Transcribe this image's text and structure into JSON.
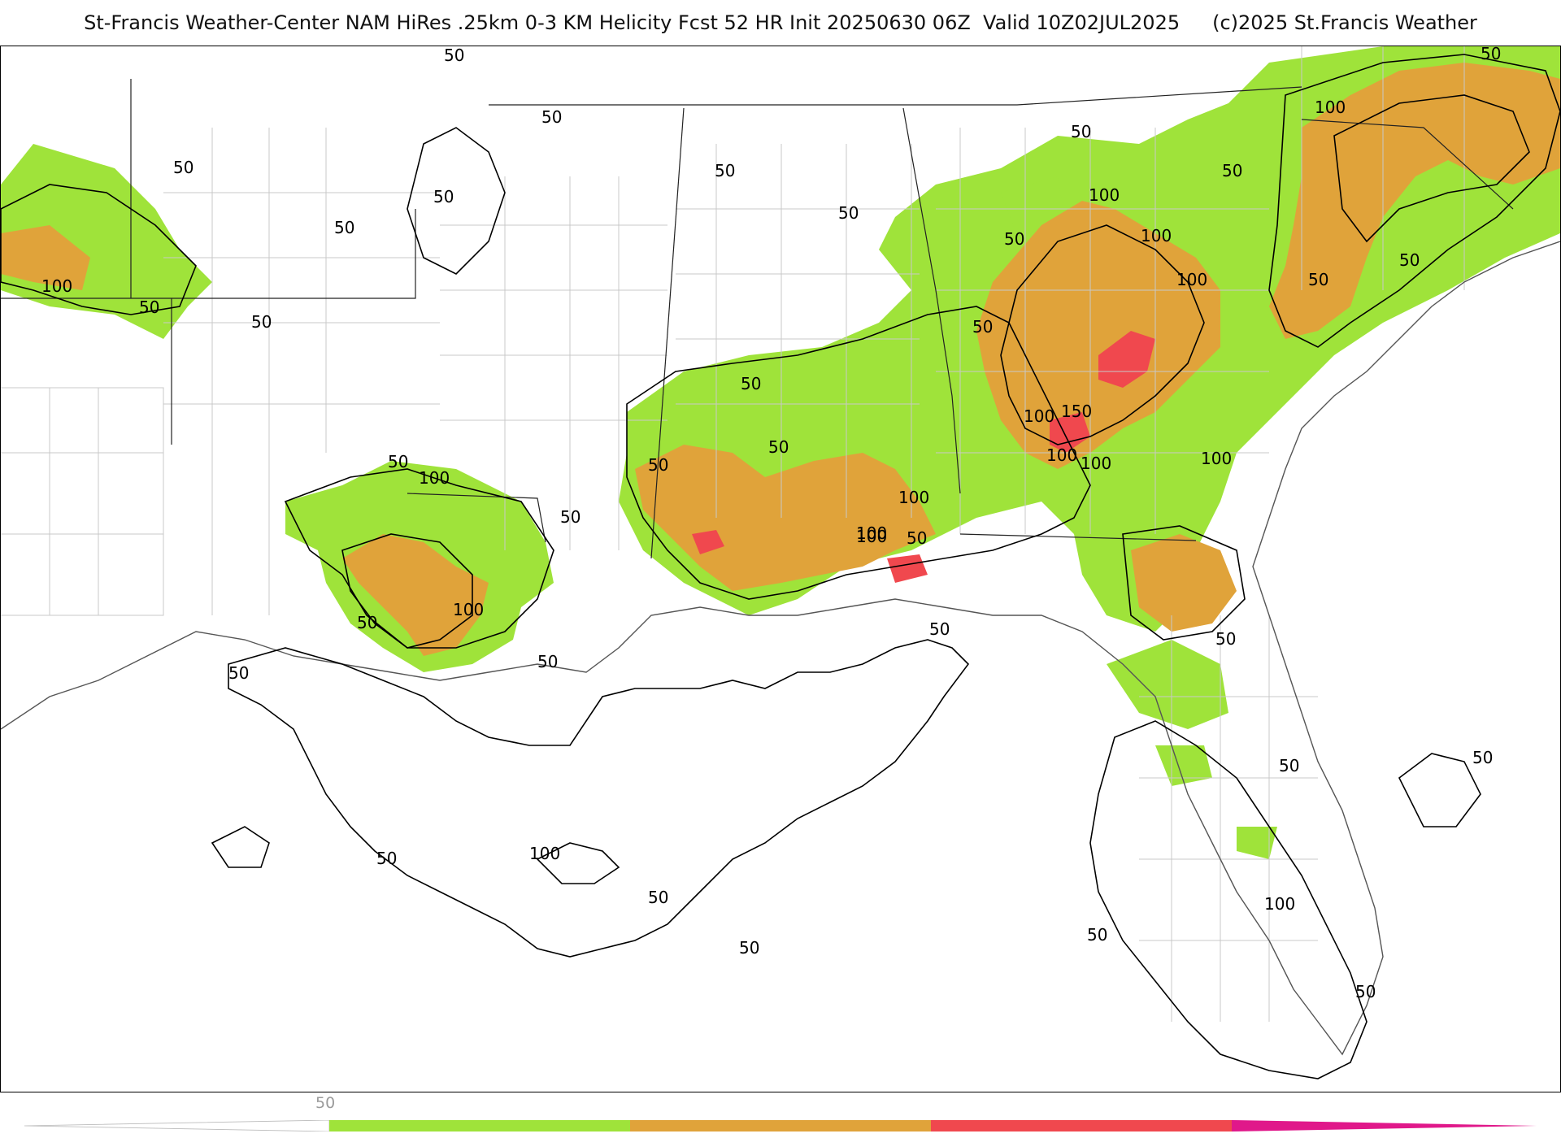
{
  "header": {
    "title_main": "St-Francis Weather-Center NAM HiRes .25km 0-3 KM Helicity Fcst 52 HR Init 20250630 06Z  Valid 10Z02JUL2025",
    "copyright": "(c)2025 St.Francis Weather"
  },
  "legend": {
    "tick_label": "50",
    "colors": [
      "#ffffff",
      "#9fe33a",
      "#e0a33a",
      "#f0484e",
      "#e0188a"
    ]
  },
  "map": {
    "fill_colors": {
      "level_50": "#9fe33a",
      "level_100": "#e0a33a",
      "level_150": "#f0484e"
    },
    "contour_labels": [
      "50",
      "50",
      "50",
      "50",
      "50",
      "50",
      "100",
      "50",
      "50",
      "50",
      "50",
      "100",
      "50",
      "50",
      "50",
      "50",
      "100",
      "100",
      "50",
      "100",
      "50",
      "100",
      "100",
      "50",
      "100",
      "50",
      "100",
      "50",
      "100",
      "150",
      "100",
      "100",
      "50",
      "100",
      "50",
      "100",
      "50",
      "50",
      "50",
      "50",
      "100",
      "50",
      "50",
      "50",
      "50",
      "50",
      "50",
      "100",
      "50",
      "50",
      "50"
    ]
  }
}
